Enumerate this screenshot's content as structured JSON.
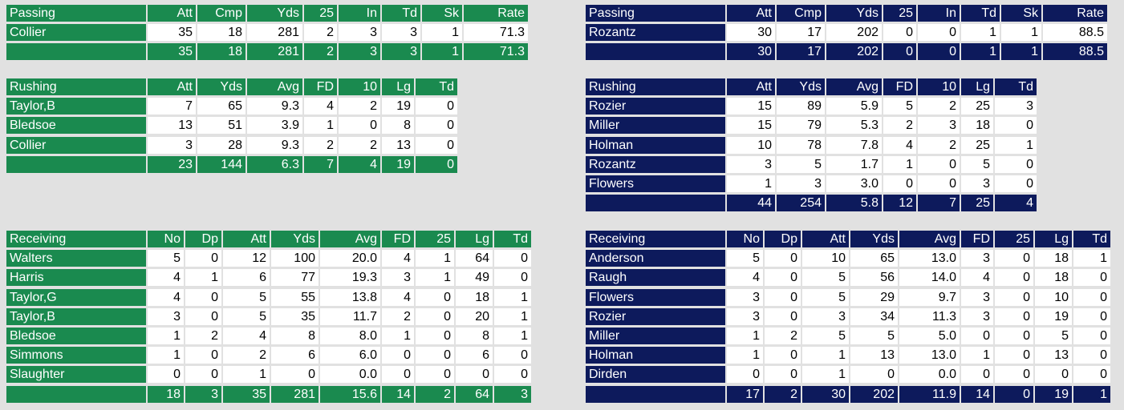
{
  "colors": {
    "home": "#1a8a4f",
    "away": "#0d1a5c",
    "background": "#e1e1e1"
  },
  "tables": {
    "home_passing": {
      "headers": [
        "Passing",
        "Att",
        "Cmp",
        "Yds",
        "25",
        "In",
        "Td",
        "Sk",
        "Rate"
      ],
      "rows": [
        [
          "Collier",
          "35",
          "18",
          "281",
          "2",
          "3",
          "3",
          "1",
          "71.3"
        ]
      ],
      "total": [
        "",
        "35",
        "18",
        "281",
        "2",
        "3",
        "3",
        "1",
        "71.3"
      ]
    },
    "away_passing": {
      "headers": [
        "Passing",
        "Att",
        "Cmp",
        "Yds",
        "25",
        "In",
        "Td",
        "Sk",
        "Rate"
      ],
      "rows": [
        [
          "Rozantz",
          "30",
          "17",
          "202",
          "0",
          "0",
          "1",
          "1",
          "88.5"
        ]
      ],
      "total": [
        "",
        "30",
        "17",
        "202",
        "0",
        "0",
        "1",
        "1",
        "88.5"
      ]
    },
    "home_rushing": {
      "headers": [
        "Rushing",
        "Att",
        "Yds",
        "Avg",
        "FD",
        "10",
        "Lg",
        "Td"
      ],
      "rows": [
        [
          "Taylor,B",
          "7",
          "65",
          "9.3",
          "4",
          "2",
          "19",
          "0"
        ],
        [
          "Bledsoe",
          "13",
          "51",
          "3.9",
          "1",
          "0",
          "8",
          "0"
        ],
        [
          "Collier",
          "3",
          "28",
          "9.3",
          "2",
          "2",
          "13",
          "0"
        ]
      ],
      "total": [
        "",
        "23",
        "144",
        "6.3",
        "7",
        "4",
        "19",
        "0"
      ]
    },
    "away_rushing": {
      "headers": [
        "Rushing",
        "Att",
        "Yds",
        "Avg",
        "FD",
        "10",
        "Lg",
        "Td"
      ],
      "rows": [
        [
          "Rozier",
          "15",
          "89",
          "5.9",
          "5",
          "2",
          "25",
          "3"
        ],
        [
          "Miller",
          "15",
          "79",
          "5.3",
          "2",
          "3",
          "18",
          "0"
        ],
        [
          "Holman",
          "10",
          "78",
          "7.8",
          "4",
          "2",
          "25",
          "1"
        ],
        [
          "Rozantz",
          "3",
          "5",
          "1.7",
          "1",
          "0",
          "5",
          "0"
        ],
        [
          "Flowers",
          "1",
          "3",
          "3.0",
          "0",
          "0",
          "3",
          "0"
        ]
      ],
      "total": [
        "",
        "44",
        "254",
        "5.8",
        "12",
        "7",
        "25",
        "4"
      ]
    },
    "home_receiving": {
      "headers": [
        "Receiving",
        "No",
        "Dp",
        "Att",
        "Yds",
        "Avg",
        "FD",
        "25",
        "Lg",
        "Td"
      ],
      "rows": [
        [
          "Walters",
          "5",
          "0",
          "12",
          "100",
          "20.0",
          "4",
          "1",
          "64",
          "0"
        ],
        [
          "Harris",
          "4",
          "1",
          "6",
          "77",
          "19.3",
          "3",
          "1",
          "49",
          "0"
        ],
        [
          "Taylor,G",
          "4",
          "0",
          "5",
          "55",
          "13.8",
          "4",
          "0",
          "18",
          "1"
        ],
        [
          "Taylor,B",
          "3",
          "0",
          "5",
          "35",
          "11.7",
          "2",
          "0",
          "20",
          "1"
        ],
        [
          "Bledsoe",
          "1",
          "2",
          "4",
          "8",
          "8.0",
          "1",
          "0",
          "8",
          "1"
        ],
        [
          "Simmons",
          "1",
          "0",
          "2",
          "6",
          "6.0",
          "0",
          "0",
          "6",
          "0"
        ],
        [
          "Slaughter",
          "0",
          "0",
          "1",
          "0",
          "0.0",
          "0",
          "0",
          "0",
          "0"
        ]
      ],
      "total": [
        "",
        "18",
        "3",
        "35",
        "281",
        "15.6",
        "14",
        "2",
        "64",
        "3"
      ]
    },
    "away_receiving": {
      "headers": [
        "Receiving",
        "No",
        "Dp",
        "Att",
        "Yds",
        "Avg",
        "FD",
        "25",
        "Lg",
        "Td"
      ],
      "rows": [
        [
          "Anderson",
          "5",
          "0",
          "10",
          "65",
          "13.0",
          "3",
          "0",
          "18",
          "1"
        ],
        [
          "Raugh",
          "4",
          "0",
          "5",
          "56",
          "14.0",
          "4",
          "0",
          "18",
          "0"
        ],
        [
          "Flowers",
          "3",
          "0",
          "5",
          "29",
          "9.7",
          "3",
          "0",
          "10",
          "0"
        ],
        [
          "Rozier",
          "3",
          "0",
          "3",
          "34",
          "11.3",
          "3",
          "0",
          "19",
          "0"
        ],
        [
          "Miller",
          "1",
          "2",
          "5",
          "5",
          "5.0",
          "0",
          "0",
          "5",
          "0"
        ],
        [
          "Holman",
          "1",
          "0",
          "1",
          "13",
          "13.0",
          "1",
          "0",
          "13",
          "0"
        ],
        [
          "Dirden",
          "0",
          "0",
          "1",
          "0",
          "0.0",
          "0",
          "0",
          "0",
          "0"
        ]
      ],
      "total": [
        "",
        "17",
        "2",
        "30",
        "202",
        "11.9",
        "14",
        "0",
        "19",
        "1"
      ]
    }
  }
}
